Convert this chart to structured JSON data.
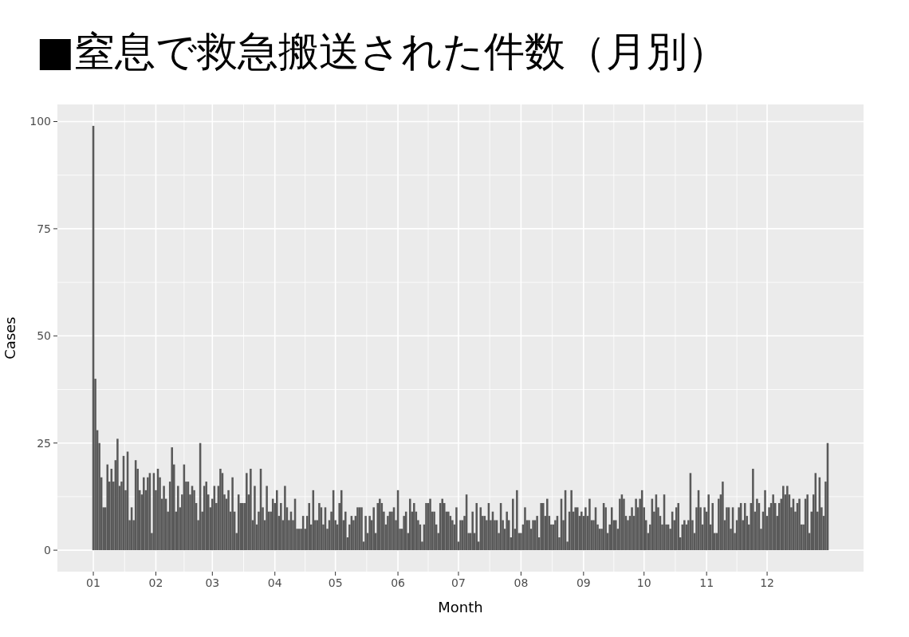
{
  "chart_data": {
    "type": "bar",
    "title": "■窒息で救急搬送された件数（月別）",
    "xlabel": "Month",
    "ylabel": "Cases",
    "color": "#595959",
    "categories": [
      "01",
      null,
      null,
      null,
      null,
      null,
      null,
      null,
      null,
      null,
      null,
      null,
      null,
      null,
      null,
      null,
      null,
      null,
      null,
      null,
      null,
      null,
      null,
      null,
      null,
      null,
      null,
      null,
      null,
      null,
      null,
      "02",
      null,
      null,
      null,
      null,
      null,
      null,
      null,
      null,
      null,
      null,
      null,
      null,
      null,
      null,
      null,
      null,
      null,
      null,
      null,
      null,
      null,
      null,
      null,
      null,
      null,
      null,
      null,
      "03",
      null,
      null,
      null,
      null,
      null,
      null,
      null,
      null,
      null,
      null,
      null,
      null,
      null,
      null,
      null,
      null,
      null,
      null,
      null,
      null,
      null,
      null,
      null,
      null,
      null,
      null,
      null,
      null,
      null,
      null,
      "04",
      null,
      null,
      null,
      null,
      null,
      null,
      null,
      null,
      null,
      null,
      null,
      null,
      null,
      null,
      null,
      null,
      null,
      null,
      null,
      null,
      null,
      null,
      null,
      null,
      null,
      null,
      null,
      null,
      null,
      "05",
      null,
      null,
      null,
      null,
      null,
      null,
      null,
      null,
      null,
      null,
      null,
      null,
      null,
      null,
      null,
      null,
      null,
      null,
      null,
      null,
      null,
      null,
      null,
      null,
      null,
      null,
      null,
      null,
      null,
      null,
      "06",
      null,
      null,
      null,
      null,
      null,
      null,
      null,
      null,
      null,
      null,
      null,
      null,
      null,
      null,
      null,
      null,
      null,
      null,
      null,
      null,
      null,
      null,
      null,
      null,
      null,
      null,
      null,
      null,
      null,
      "07",
      null,
      null,
      null,
      null,
      null,
      null,
      null,
      null,
      null,
      null,
      null,
      null,
      null,
      null,
      null,
      null,
      null,
      null,
      null,
      null,
      null,
      null,
      null,
      null,
      null,
      null,
      null,
      null,
      null,
      null,
      "08",
      null,
      null,
      null,
      null,
      null,
      null,
      null,
      null,
      null,
      null,
      null,
      null,
      null,
      null,
      null,
      null,
      null,
      null,
      null,
      null,
      null,
      null,
      null,
      null,
      null,
      null,
      null,
      null,
      null,
      null,
      "09",
      null,
      null,
      null,
      null,
      null,
      null,
      null,
      null,
      null,
      null,
      null,
      null,
      null,
      null,
      null,
      null,
      null,
      null,
      null,
      null,
      null,
      null,
      null,
      null,
      null,
      null,
      null,
      null,
      null,
      "10",
      null,
      null,
      null,
      null,
      null,
      null,
      null,
      null,
      null,
      null,
      null,
      null,
      null,
      null,
      null,
      null,
      null,
      null,
      null,
      null,
      null,
      null,
      null,
      null,
      null,
      null,
      null,
      null,
      null,
      null,
      "11",
      null,
      null,
      null,
      null,
      null,
      null,
      null,
      null,
      null,
      null,
      null,
      null,
      null,
      null,
      null,
      null,
      null,
      null,
      null,
      null,
      null,
      null,
      null,
      null,
      null,
      null,
      null,
      null,
      null,
      "12",
      null,
      null,
      null,
      null,
      null,
      null,
      null,
      null,
      null,
      null,
      null,
      null,
      null,
      null,
      null,
      null,
      null,
      null,
      null,
      null,
      null,
      null,
      null,
      null,
      null,
      null,
      null,
      null,
      null,
      null
    ],
    "values": [
      99,
      40,
      28,
      25,
      17,
      10,
      10,
      20,
      16,
      19,
      16,
      21,
      26,
      15,
      16,
      22,
      14,
      23,
      7,
      10,
      7,
      21,
      19,
      14,
      13,
      17,
      14,
      17,
      18,
      4,
      18,
      14,
      19,
      17,
      12,
      15,
      12,
      9,
      16,
      24,
      20,
      9,
      15,
      10,
      13,
      20,
      16,
      16,
      13,
      15,
      14,
      11,
      7,
      25,
      9,
      15,
      16,
      13,
      10,
      12,
      15,
      11,
      15,
      19,
      18,
      13,
      12,
      14,
      9,
      17,
      9,
      4,
      13,
      11,
      11,
      11,
      18,
      13,
      19,
      7,
      15,
      6,
      9,
      19,
      10,
      7,
      15,
      9,
      9,
      12,
      11,
      14,
      8,
      11,
      7,
      15,
      10,
      7,
      9,
      7,
      12,
      5,
      5,
      5,
      8,
      5,
      8,
      11,
      6,
      14,
      7,
      7,
      11,
      10,
      6,
      10,
      5,
      7,
      9,
      14,
      7,
      6,
      11,
      14,
      7,
      9,
      3,
      6,
      8,
      7,
      8,
      10,
      10,
      10,
      2,
      8,
      4,
      8,
      7,
      10,
      4,
      11,
      12,
      11,
      9,
      6,
      8,
      9,
      9,
      10,
      7,
      14,
      5,
      5,
      8,
      9,
      4,
      12,
      9,
      11,
      9,
      7,
      6,
      2,
      6,
      11,
      11,
      12,
      9,
      9,
      6,
      4,
      11,
      12,
      11,
      9,
      9,
      8,
      7,
      6,
      10,
      2,
      7,
      7,
      8,
      13,
      4,
      4,
      9,
      4,
      11,
      2,
      10,
      8,
      8,
      7,
      11,
      7,
      9,
      7,
      7,
      4,
      11,
      7,
      5,
      9,
      7,
      3,
      12,
      5,
      14,
      4,
      4,
      6,
      10,
      7,
      7,
      5,
      7,
      7,
      8,
      3,
      11,
      11,
      8,
      12,
      8,
      6,
      6,
      7,
      8,
      3,
      12,
      7,
      14,
      2,
      9,
      14,
      9,
      10,
      10,
      8,
      9,
      8,
      10,
      8,
      12,
      7,
      7,
      10,
      6,
      5,
      5,
      11,
      10,
      4,
      6,
      10,
      7,
      7,
      5,
      12,
      13,
      12,
      8,
      7,
      8,
      10,
      8,
      12,
      10,
      12,
      14,
      10,
      7,
      4,
      6,
      12,
      9,
      13,
      10,
      8,
      6,
      13,
      6,
      6,
      5,
      9,
      7,
      10,
      11,
      3,
      6,
      7,
      6,
      7,
      18,
      7,
      4,
      10,
      14,
      10,
      6,
      10,
      9,
      13,
      6,
      11,
      4,
      4,
      12,
      13,
      16,
      7,
      10,
      10,
      5,
      10,
      4,
      7,
      10,
      11,
      7,
      11,
      8,
      6,
      11,
      19,
      9,
      12,
      11,
      5,
      9,
      14,
      8,
      10,
      11,
      13,
      11,
      8,
      11,
      12,
      15,
      13,
      15,
      13,
      10,
      12,
      9,
      11,
      12,
      6,
      6,
      12,
      13,
      4,
      9,
      13,
      18,
      9,
      17,
      10,
      8,
      16,
      25
    ],
    "ylim": [
      -5,
      104
    ],
    "yticks": [
      0,
      25,
      50,
      75,
      100
    ],
    "grid": true
  }
}
